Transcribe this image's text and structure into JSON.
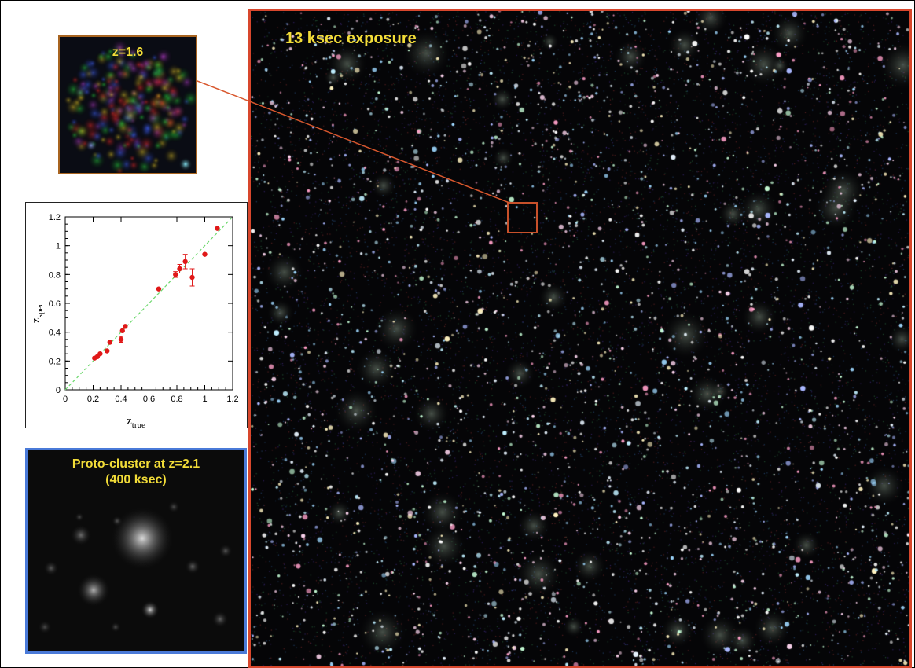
{
  "main_panel": {
    "label": "13 ksec exposure",
    "label_color": "#f2dc38",
    "border_color": "#d8472d"
  },
  "inset_z16": {
    "label": "z=1.6",
    "border_color": "#a86420"
  },
  "proto_cluster": {
    "label_line1": "Proto-cluster at z=2.1",
    "label_line2": "(400 ksec)",
    "border_color": "#4a7ad8"
  },
  "chart_data": {
    "type": "scatter",
    "xlabel_main": "z",
    "xlabel_sub": "true",
    "ylabel_main": "z",
    "ylabel_sub": "spec",
    "xlim": [
      0,
      1.2
    ],
    "ylim": [
      0,
      1.2
    ],
    "xticks": [
      "0",
      "0.2",
      "0.4",
      "0.6",
      "0.8",
      "1",
      "1.2"
    ],
    "yticks": [
      "0",
      "0.2",
      "0.4",
      "0.6",
      "0.8",
      "1",
      "1.2"
    ],
    "reference_line": "y = x",
    "line_color": "#6cd86c",
    "point_color": "#e01818",
    "points": [
      {
        "x": 0.21,
        "y": 0.22,
        "err": 0.01
      },
      {
        "x": 0.23,
        "y": 0.23,
        "err": 0.01
      },
      {
        "x": 0.25,
        "y": 0.25,
        "err": 0.01
      },
      {
        "x": 0.3,
        "y": 0.27,
        "err": 0.01
      },
      {
        "x": 0.32,
        "y": 0.33,
        "err": 0.01
      },
      {
        "x": 0.4,
        "y": 0.35,
        "err": 0.02
      },
      {
        "x": 0.41,
        "y": 0.41,
        "err": 0.01
      },
      {
        "x": 0.43,
        "y": 0.44,
        "err": 0.01
      },
      {
        "x": 0.67,
        "y": 0.7,
        "err": 0.01
      },
      {
        "x": 0.79,
        "y": 0.8,
        "err": 0.02
      },
      {
        "x": 0.82,
        "y": 0.84,
        "err": 0.03
      },
      {
        "x": 0.86,
        "y": 0.89,
        "err": 0.05
      },
      {
        "x": 0.91,
        "y": 0.78,
        "err": 0.06
      },
      {
        "x": 1.0,
        "y": 0.94,
        "err": 0.01
      },
      {
        "x": 1.09,
        "y": 1.12,
        "err": 0.01
      }
    ]
  }
}
